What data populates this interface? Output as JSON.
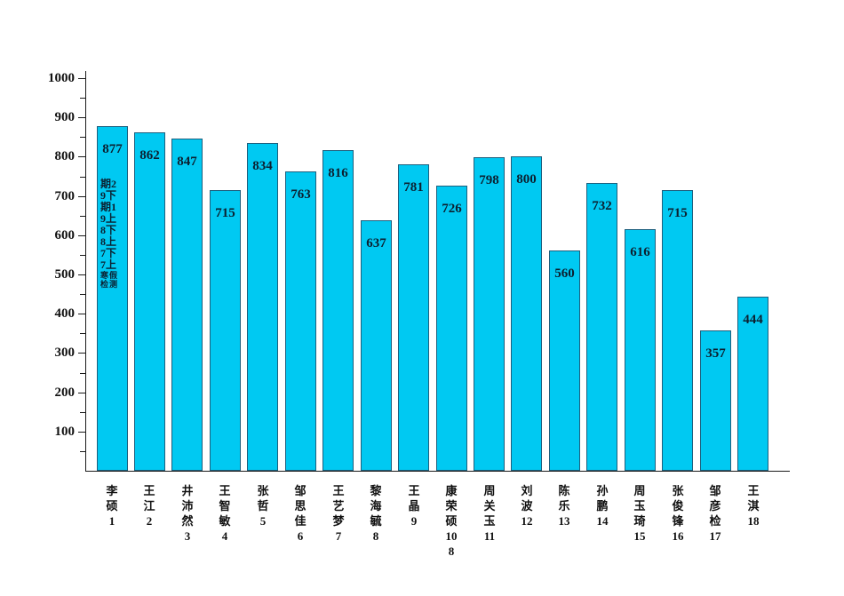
{
  "chart_data": {
    "type": "bar",
    "title": "",
    "xlabel": "",
    "ylabel": "",
    "ylim": [
      0,
      1000
    ],
    "ytick_major_step": 100,
    "ytick_minor_step": 50,
    "grid": false,
    "legend_position": "none",
    "categories": [
      "李硕1",
      "王江2",
      "井沛然3",
      "王智敏4",
      "张哲5",
      "邹思佳6",
      "王艺梦7",
      "黎海毓8",
      "王晶9",
      "康荣硕108",
      "周关玉11",
      "刘波12",
      "陈乐13",
      "孙鹏14",
      "周玉琦15",
      "张俊锋16",
      "邹彦检17",
      "王淇18"
    ],
    "category_lines": [
      [
        "李",
        "硕",
        "1"
      ],
      [
        "王",
        "江",
        "2"
      ],
      [
        "井",
        "沛",
        "然",
        "3"
      ],
      [
        "王",
        "智",
        "敏",
        "4"
      ],
      [
        "张",
        "哲",
        "5"
      ],
      [
        "邹",
        "思",
        "佳",
        "6"
      ],
      [
        "王",
        "艺",
        "梦",
        "7"
      ],
      [
        "黎",
        "海",
        "毓",
        "8"
      ],
      [
        "王",
        "晶",
        "9"
      ],
      [
        "康",
        "荣",
        "硕",
        "10",
        "8"
      ],
      [
        "周",
        "关",
        "玉",
        "11"
      ],
      [
        "刘",
        "波",
        "12"
      ],
      [
        "陈",
        "乐",
        "13"
      ],
      [
        "孙",
        "鹏",
        "14"
      ],
      [
        "周",
        "玉",
        "琦",
        "15"
      ],
      [
        "张",
        "俊",
        "锋",
        "16"
      ],
      [
        "邹",
        "彦",
        "检",
        "17"
      ],
      [
        "王",
        "淇",
        "18"
      ]
    ],
    "values": [
      877,
      862,
      847,
      715,
      834,
      763,
      816,
      637,
      781,
      726,
      798,
      800,
      560,
      732,
      616,
      715,
      357,
      444
    ],
    "bar_annotation": {
      "bar_index": 0,
      "lines": [
        "期2",
        "9下",
        "期1",
        "9上",
        "8下",
        "8上",
        "7下",
        "7上"
      ],
      "small_lines": [
        "寒假",
        "检测"
      ]
    },
    "colors": {
      "bar_fill": "#00c9f2",
      "bar_border": "#1d5f7d",
      "axis": "#1a1a1a",
      "bar_text": "#0c2030",
      "tick_text": "#111111"
    }
  }
}
